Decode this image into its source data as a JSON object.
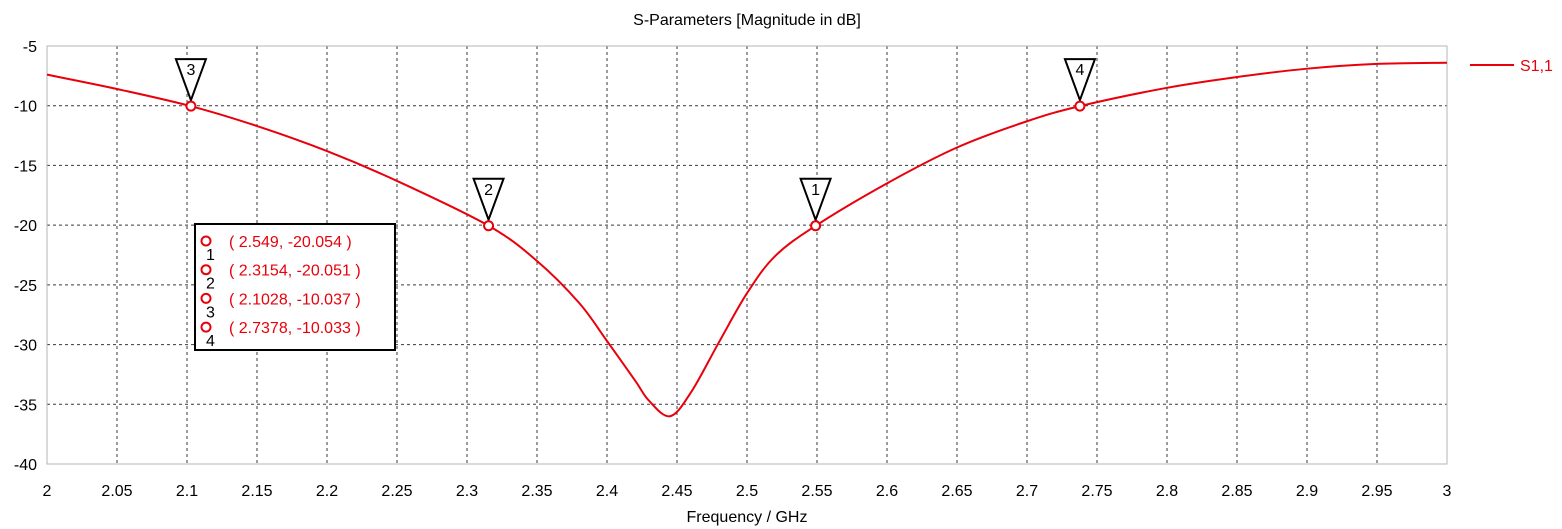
{
  "chart_data": {
    "type": "line",
    "title": "S-Parameters [Magnitude in dB]",
    "xlabel": "Frequency / GHz",
    "ylabel": "",
    "xlim": [
      2,
      3
    ],
    "ylim": [
      -40,
      -5
    ],
    "xticks": [
      "2",
      "2.05",
      "2.1",
      "2.15",
      "2.2",
      "2.25",
      "2.3",
      "2.35",
      "2.4",
      "2.45",
      "2.5",
      "2.55",
      "2.6",
      "2.65",
      "2.7",
      "2.75",
      "2.8",
      "2.85",
      "2.9",
      "2.95",
      "3"
    ],
    "yticks": [
      "-5",
      "-10",
      "-15",
      "-20",
      "-25",
      "-30",
      "-35",
      "-40"
    ],
    "grid": true,
    "legend_position": "right",
    "series": [
      {
        "name": "S1,1",
        "color": "#e8000b",
        "x": [
          2.0,
          2.05,
          2.1028,
          2.15,
          2.2,
          2.25,
          2.3154,
          2.35,
          2.38,
          2.4,
          2.42,
          2.43,
          2.445,
          2.46,
          2.48,
          2.5,
          2.52,
          2.549,
          2.6,
          2.65,
          2.7,
          2.7378,
          2.8,
          2.85,
          2.9,
          2.95,
          3.0
        ],
        "values": [
          -7.4,
          -8.6,
          -10.037,
          -11.7,
          -13.8,
          -16.3,
          -20.051,
          -23.0,
          -26.5,
          -29.7,
          -33.0,
          -34.7,
          -36.0,
          -34.0,
          -29.8,
          -25.7,
          -22.6,
          -20.054,
          -16.5,
          -13.5,
          -11.3,
          -10.033,
          -8.5,
          -7.6,
          -6.9,
          -6.5,
          -6.4
        ]
      }
    ],
    "markers": [
      {
        "id": "1",
        "x": 2.549,
        "y": -20.054,
        "label": "( 2.549, -20.054 )"
      },
      {
        "id": "2",
        "x": 2.3154,
        "y": -20.051,
        "label": "( 2.3154, -20.051 )"
      },
      {
        "id": "3",
        "x": 2.1028,
        "y": -10.037,
        "label": "( 2.1028, -10.037 )"
      },
      {
        "id": "4",
        "x": 2.7378,
        "y": -10.033,
        "label": "( 2.7378, -10.033 )"
      }
    ]
  }
}
